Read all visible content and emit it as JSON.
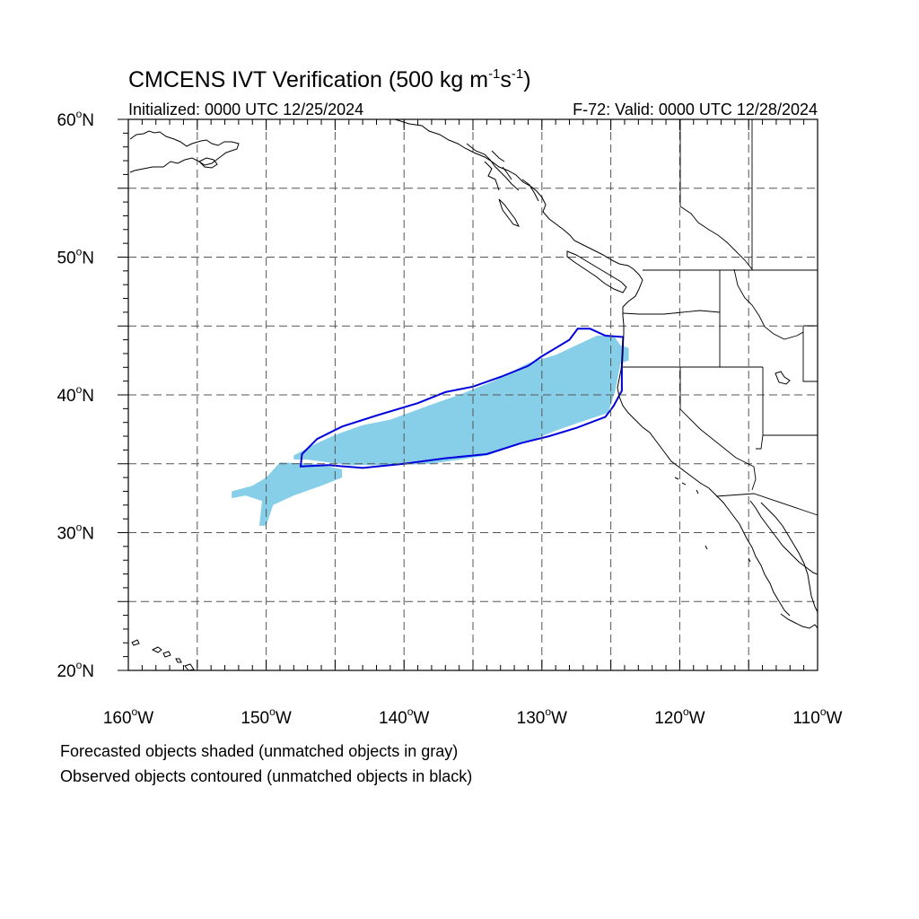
{
  "title": {
    "main": "CMCENS IVT Verification (500 kg m",
    "exp1": "-1",
    "mid": "s",
    "exp2": "-1",
    "close": ")"
  },
  "subtitle": {
    "left": "Initialized: 0000 UTC 12/25/2024",
    "right": "F-72: Valid: 0000 UTC 12/28/2024"
  },
  "map": {
    "lon_range": [
      -160,
      -110
    ],
    "lat_range": [
      20,
      60
    ],
    "grid_step_deg": 5,
    "grid_style": "dashed",
    "lat_labels": [
      {
        "lat": 60,
        "deg": "60",
        "suffix": "N"
      },
      {
        "lat": 50,
        "deg": "50",
        "suffix": "N"
      },
      {
        "lat": 40,
        "deg": "40",
        "suffix": "N"
      },
      {
        "lat": 30,
        "deg": "30",
        "suffix": "N"
      },
      {
        "lat": 20,
        "deg": "20",
        "suffix": "N"
      }
    ],
    "lon_labels": [
      {
        "lon": -160,
        "deg": "160",
        "suffix": "W"
      },
      {
        "lon": -150,
        "deg": "150",
        "suffix": "W"
      },
      {
        "lon": -140,
        "deg": "140",
        "suffix": "W"
      },
      {
        "lon": -130,
        "deg": "130",
        "suffix": "W"
      },
      {
        "lon": -120,
        "deg": "120",
        "suffix": "W"
      },
      {
        "lon": -110,
        "deg": "110",
        "suffix": "W"
      }
    ],
    "forecast_fill_color": "#87cee8",
    "observed_contour_color": "#0000dd",
    "forecast_object": [
      [
        -148.0,
        35.3
      ],
      [
        -147.0,
        35.3
      ],
      [
        -144.0,
        34.9
      ],
      [
        -141.0,
        34.9
      ],
      [
        -138.0,
        35.0
      ],
      [
        -134.0,
        35.6
      ],
      [
        -131.0,
        36.6
      ],
      [
        -129.0,
        37.4
      ],
      [
        -127.0,
        38.1
      ],
      [
        -125.2,
        38.7
      ],
      [
        -124.7,
        40.2
      ],
      [
        -124.3,
        42.3
      ],
      [
        -123.7,
        42.5
      ],
      [
        -123.7,
        43.4
      ],
      [
        -124.3,
        43.6
      ],
      [
        -124.8,
        44.3
      ],
      [
        -126.0,
        44.3
      ],
      [
        -127.3,
        43.7
      ],
      [
        -129.0,
        42.9
      ],
      [
        -131.0,
        42.3
      ],
      [
        -133.5,
        41.0
      ],
      [
        -136.0,
        40.0
      ],
      [
        -138.0,
        39.3
      ],
      [
        -141.0,
        38.2
      ],
      [
        -143.0,
        37.8
      ],
      [
        -145.0,
        37.1
      ],
      [
        -146.5,
        36.4
      ],
      [
        -148.0,
        35.6
      ]
    ],
    "forecast_tail": [
      [
        -149.0,
        35.1
      ],
      [
        -146.5,
        35.0
      ],
      [
        -144.5,
        34.6
      ],
      [
        -144.5,
        34.0
      ],
      [
        -146.0,
        33.4
      ],
      [
        -148.0,
        32.7
      ],
      [
        -149.5,
        32.0
      ],
      [
        -150.0,
        30.5
      ],
      [
        -150.5,
        30.5
      ],
      [
        -150.3,
        32.3
      ],
      [
        -151.5,
        32.7
      ],
      [
        -152.5,
        32.5
      ],
      [
        -152.5,
        33.0
      ],
      [
        -151.0,
        33.4
      ],
      [
        -150.0,
        34.0
      ]
    ],
    "observed_contour": [
      [
        -147.5,
        34.8
      ],
      [
        -145.5,
        34.9
      ],
      [
        -143.0,
        34.7
      ],
      [
        -140.0,
        35.0
      ],
      [
        -137.0,
        35.4
      ],
      [
        -134.0,
        35.7
      ],
      [
        -131.5,
        36.5
      ],
      [
        -129.5,
        37.0
      ],
      [
        -127.5,
        37.6
      ],
      [
        -125.4,
        38.4
      ],
      [
        -124.8,
        39.2
      ],
      [
        -124.2,
        40.3
      ],
      [
        -124.2,
        42.0
      ],
      [
        -124.1,
        44.2
      ],
      [
        -125.4,
        44.3
      ],
      [
        -126.5,
        44.8
      ],
      [
        -127.4,
        44.8
      ],
      [
        -128.0,
        44.0
      ],
      [
        -129.0,
        43.4
      ],
      [
        -130.0,
        42.8
      ],
      [
        -131.0,
        42.1
      ],
      [
        -133.0,
        41.3
      ],
      [
        -135.0,
        40.6
      ],
      [
        -137.0,
        40.2
      ],
      [
        -139.0,
        39.4
      ],
      [
        -142.0,
        38.5
      ],
      [
        -144.5,
        37.7
      ],
      [
        -146.3,
        36.8
      ],
      [
        -147.4,
        35.7
      ],
      [
        -147.5,
        34.8
      ]
    ]
  },
  "footer": {
    "line1": "Forecasted objects shaded (unmatched objects in gray)",
    "line2": "Observed objects contoured (unmatched objects in black)"
  }
}
